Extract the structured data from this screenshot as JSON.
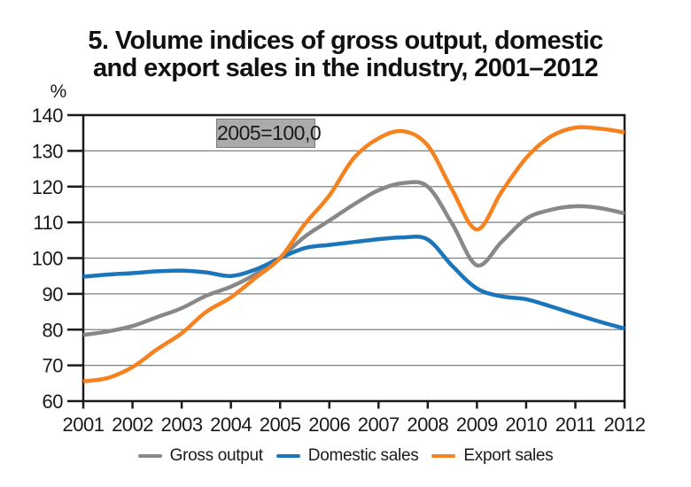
{
  "title_lines": [
    "5. Volume indices of gross output, domestic",
    "and export sales in the industry, 2001–2012"
  ],
  "chart_data": {
    "type": "line",
    "title": "5. Volume indices of gross output, domestic and export sales in the industry, 2001–2012",
    "y_unit": "%",
    "annotation": "2005=100,0",
    "annotation_bg": "#ABABAB",
    "annotation_border": "#7A7A7A",
    "grid": "horizontal",
    "legend_position": "bottom",
    "axis_color": "#1A1A1A",
    "gridline_color": "#7F7F7F",
    "xlim": [
      2001,
      2012
    ],
    "ylim": [
      60,
      140
    ],
    "x_ticks": [
      2001,
      2002,
      2003,
      2004,
      2005,
      2006,
      2007,
      2008,
      2009,
      2010,
      2011,
      2012
    ],
    "y_ticks": [
      60,
      70,
      80,
      90,
      100,
      110,
      120,
      130,
      140
    ],
    "x": [
      2001,
      2001.5,
      2002,
      2002.5,
      2003,
      2003.5,
      2004,
      2004.5,
      2005,
      2005.5,
      2006,
      2006.5,
      2007,
      2007.5,
      2008,
      2008.5,
      2009,
      2009.5,
      2010,
      2010.5,
      2011,
      2011.5,
      2012
    ],
    "series": [
      {
        "name": "Gross output",
        "color": "#888888",
        "values": [
          78.5,
          79.5,
          81,
          83.5,
          86,
          89.5,
          92,
          95.5,
          100,
          106,
          110.5,
          115,
          119,
          121,
          120,
          109.5,
          98,
          104.5,
          111,
          113.5,
          114.5,
          114,
          112.5
        ]
      },
      {
        "name": "Domestic sales",
        "color": "#1B75BB",
        "values": [
          94.8,
          95.4,
          95.8,
          96.3,
          96.5,
          96,
          95,
          96.8,
          100,
          102.8,
          103.7,
          104.5,
          105.3,
          105.8,
          105.2,
          97.8,
          91.5,
          89.3,
          88.5,
          86.5,
          84.3,
          82.2,
          80.3
        ]
      },
      {
        "name": "Export sales",
        "color": "#F5821F",
        "values": [
          65.5,
          66.5,
          69.5,
          74.5,
          79,
          85,
          89,
          94.5,
          100,
          109.5,
          117.5,
          128,
          133.5,
          135.5,
          131.5,
          119,
          108,
          118.5,
          128,
          134,
          136.5,
          136.2,
          135.2
        ]
      }
    ]
  }
}
